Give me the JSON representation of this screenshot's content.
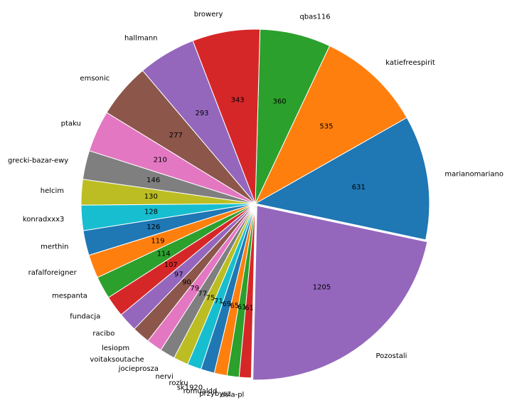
{
  "chart_data": {
    "type": "pie",
    "labels": [
      "marianomariano",
      "katiefreespirit",
      "qbas116",
      "browery",
      "hallmann",
      "emsonic",
      "ptaku",
      "grecki-bazar-ewy",
      "helcim",
      "konradxxx3",
      "merthin",
      "rafalforeigner",
      "mespanta",
      "fundacja",
      "racibo",
      "lesiopm",
      "voitaksoutache",
      "jocieprosza",
      "nervi",
      "rozku",
      "sk1920",
      "romualdd",
      "przybysz",
      "asia-pl",
      "Pozostali"
    ],
    "values": [
      631,
      535,
      360,
      343,
      293,
      277,
      210,
      146,
      130,
      128,
      126,
      119,
      114,
      107,
      97,
      90,
      79,
      77,
      75,
      71,
      69,
      65,
      61,
      61,
      1205
    ],
    "colors": [
      "#1f77b4",
      "#ff7f0e",
      "#2ca02c",
      "#d62728",
      "#9467bd",
      "#8c564b",
      "#e377c2",
      "#7f7f7f",
      "#bcbd22",
      "#17becf",
      "#1f77b4",
      "#ff7f0e",
      "#2ca02c",
      "#d62728",
      "#9467bd",
      "#8c564b",
      "#e377c2",
      "#7f7f7f",
      "#bcbd22",
      "#17becf",
      "#1f77b4",
      "#ff7f0e",
      "#2ca02c",
      "#d62728",
      "#9467bd"
    ],
    "start_angle_deg": -12,
    "direction": "counterclockwise",
    "explode": [
      0,
      0,
      0,
      0,
      0,
      0,
      0,
      0,
      0,
      0,
      0,
      0,
      0,
      0,
      0,
      0,
      0,
      0,
      0,
      0,
      0,
      0,
      0,
      0,
      0.015
    ],
    "data_labels": "values",
    "legend": "none"
  }
}
